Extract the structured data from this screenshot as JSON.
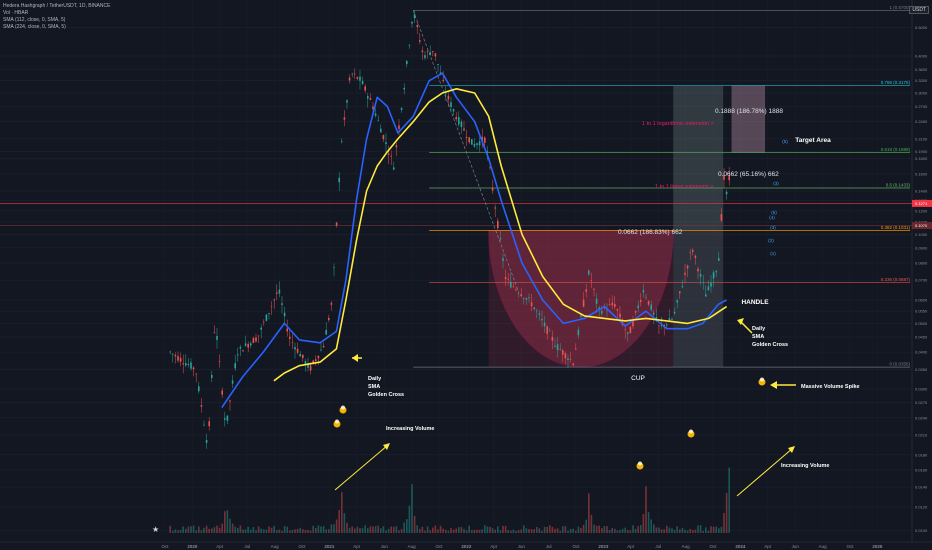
{
  "header": {
    "title": "Hedera Hashgraph / TetherUSDT, 1D, BINANCE",
    "line2": "Vol · HBAR",
    "line3": "SMA (112, close, 0, SMA, 5)",
    "line4": "SMA (224, close, 0, SMA, 5)"
  },
  "currency_badge": "USDT",
  "colors": {
    "background": "#131722",
    "sma_fast": "#2962ff",
    "sma_slow": "#ffeb3b",
    "cup_fill": "#9c2f4a",
    "bull": "#26a69a",
    "bear": "#ef5350",
    "fib_1": "#787b86",
    "fib_786": "#26c6da",
    "fib_618": "#4caf50",
    "fib_5": "#66bb6a",
    "fib_382": "#ff9800",
    "fib_236": "#ef5350",
    "fib_0": "#787b86",
    "target_fill": "#d4a0b8",
    "annotation_pink": "#e91e63",
    "arrow_yellow": "#ffeb3b",
    "hline_red": "#f23645"
  },
  "chart_data": {
    "type": "candlestick",
    "scale": "log",
    "ylim": [
      0.0098,
      0.59
    ],
    "x_tick_labels": [
      "Oct",
      "2020",
      "Apr",
      "Jul",
      "Aug",
      "Oct",
      "2021",
      "Apr",
      "Jun",
      "Aug",
      "Oct",
      "2022",
      "Apr",
      "Jun",
      "Jul",
      "Oct",
      "2023",
      "Apr",
      "Jul",
      "Aug",
      "Oct",
      "2024",
      "Apr",
      "Jun",
      "Aug",
      "Oct",
      "2025"
    ],
    "y_tick_labels": [
      "0.7000",
      "0.5000",
      "0.4000",
      "0.3600",
      "0.3300",
      "0.3000",
      "0.2700",
      "0.2400",
      "0.2100",
      "0.1900",
      "0.1800",
      "0.1600",
      "0.1400",
      "0.1300",
      "0.1200",
      "0.1100",
      "0.1000",
      "0.0900",
      "0.0800",
      "0.0700",
      "0.0600",
      "0.0550",
      "0.0500",
      "0.0450",
      "0.0400",
      "0.0350",
      "0.0300",
      "0.0270",
      "0.0240",
      "0.0210",
      "0.0180",
      "0.0160",
      "0.0140",
      "0.0120",
      "0.0100"
    ],
    "price_path": [
      [
        "2019-10-01",
        0.04
      ],
      [
        "2019-12-15",
        0.035
      ],
      [
        "2020-01-20",
        0.019
      ],
      [
        "2020-02-10",
        0.052
      ],
      [
        "2020-03-13",
        0.022
      ],
      [
        "2020-04-15",
        0.04
      ],
      [
        "2020-06-15",
        0.045
      ],
      [
        "2020-08-15",
        0.065
      ],
      [
        "2020-09-15",
        0.045
      ],
      [
        "2020-11-15",
        0.035
      ],
      [
        "2020-12-25",
        0.042
      ],
      [
        "2021-01-20",
        0.06
      ],
      [
        "2021-02-15",
        0.2
      ],
      [
        "2021-03-15",
        0.35
      ],
      [
        "2021-04-15",
        0.33
      ],
      [
        "2021-05-20",
        0.27
      ],
      [
        "2021-07-20",
        0.17
      ],
      [
        "2021-08-20",
        0.32
      ],
      [
        "2021-09-15",
        0.57
      ],
      [
        "2021-10-15",
        0.4
      ],
      [
        "2021-11-15",
        0.42
      ],
      [
        "2021-12-20",
        0.3
      ],
      [
        "2022-01-20",
        0.25
      ],
      [
        "2022-03-10",
        0.2
      ],
      [
        "2022-04-15",
        0.21
      ],
      [
        "2022-06-15",
        0.07
      ],
      [
        "2022-07-20",
        0.065
      ],
      [
        "2022-09-01",
        0.058
      ],
      [
        "2022-11-10",
        0.042
      ],
      [
        "2022-12-30",
        0.037
      ],
      [
        "2023-02-15",
        0.075
      ],
      [
        "2023-03-15",
        0.055
      ],
      [
        "2023-05-01",
        0.058
      ],
      [
        "2023-06-10",
        0.045
      ],
      [
        "2023-07-25",
        0.065
      ],
      [
        "2023-09-10",
        0.048
      ],
      [
        "2023-10-20",
        0.052
      ],
      [
        "2023-12-15",
        0.09
      ],
      [
        "2024-01-25",
        0.062
      ],
      [
        "2024-03-01",
        0.08
      ],
      [
        "2024-03-12",
        0.125
      ],
      [
        "2024-03-20",
        0.17
      ],
      [
        "2024-03-28",
        0.12
      ],
      [
        "2024-04-02",
        0.155
      ]
    ],
    "series": [
      {
        "name": "SMA 112",
        "points": [
          [
            "2020-03-01",
            0.026
          ],
          [
            "2020-05-01",
            0.033
          ],
          [
            "2020-07-01",
            0.04
          ],
          [
            "2020-09-01",
            0.05
          ],
          [
            "2020-10-15",
            0.044
          ],
          [
            "2020-12-15",
            0.043
          ],
          [
            "2021-02-01",
            0.047
          ],
          [
            "2021-03-01",
            0.07
          ],
          [
            "2021-04-01",
            0.13
          ],
          [
            "2021-05-01",
            0.21
          ],
          [
            "2021-06-01",
            0.29
          ],
          [
            "2021-07-01",
            0.27
          ],
          [
            "2021-08-01",
            0.22
          ],
          [
            "2021-09-15",
            0.25
          ],
          [
            "2021-11-01",
            0.33
          ],
          [
            "2021-12-10",
            0.35
          ],
          [
            "2022-01-20",
            0.29
          ],
          [
            "2022-03-15",
            0.24
          ],
          [
            "2022-04-25",
            0.18
          ],
          [
            "2022-06-01",
            0.13
          ],
          [
            "2022-08-01",
            0.08
          ],
          [
            "2022-10-01",
            0.06
          ],
          [
            "2022-12-01",
            0.05
          ],
          [
            "2023-02-01",
            0.052
          ],
          [
            "2023-04-01",
            0.057
          ],
          [
            "2023-06-01",
            0.049
          ],
          [
            "2023-08-01",
            0.055
          ],
          [
            "2023-10-01",
            0.048
          ],
          [
            "2023-12-01",
            0.048
          ],
          [
            "2024-01-15",
            0.05
          ],
          [
            "2024-03-01",
            0.058
          ],
          [
            "2024-03-25",
            0.06
          ]
        ]
      },
      {
        "name": "SMA 224",
        "points": [
          [
            "2020-08-01",
            0.032
          ],
          [
            "2020-09-01",
            0.034
          ],
          [
            "2020-10-15",
            0.036
          ],
          [
            "2020-12-15",
            0.037
          ],
          [
            "2021-02-01",
            0.041
          ],
          [
            "2021-03-01",
            0.06
          ],
          [
            "2021-04-01",
            0.095
          ],
          [
            "2021-05-01",
            0.14
          ],
          [
            "2021-06-01",
            0.17
          ],
          [
            "2021-07-01",
            0.19
          ],
          [
            "2021-08-01",
            0.21
          ],
          [
            "2021-09-15",
            0.24
          ],
          [
            "2021-11-01",
            0.28
          ],
          [
            "2021-12-10",
            0.3
          ],
          [
            "2022-01-20",
            0.31
          ],
          [
            "2022-03-15",
            0.3
          ],
          [
            "2022-04-25",
            0.25
          ],
          [
            "2022-06-01",
            0.17
          ],
          [
            "2022-08-01",
            0.1
          ],
          [
            "2022-10-01",
            0.072
          ],
          [
            "2022-12-01",
            0.058
          ],
          [
            "2023-02-01",
            0.053
          ],
          [
            "2023-04-01",
            0.052
          ],
          [
            "2023-06-01",
            0.051
          ],
          [
            "2023-08-01",
            0.052
          ],
          [
            "2023-10-01",
            0.051
          ],
          [
            "2023-12-01",
            0.05
          ],
          [
            "2024-02-01",
            0.052
          ],
          [
            "2024-03-25",
            0.057
          ]
        ]
      }
    ],
    "fib_levels": [
      {
        "ratio": "1",
        "price": 0.57,
        "label": "1 (0.5700)"
      },
      {
        "ratio": "0.786",
        "price": 0.3175,
        "label": "0.786 (0.3175)"
      },
      {
        "ratio": "0.618",
        "price": 0.1889,
        "label": "0.618 (0.1889)"
      },
      {
        "ratio": "0.5",
        "price": 0.1433,
        "label": "0.5 (0.1433)"
      },
      {
        "ratio": "0.382",
        "price": 0.1031,
        "label": "0.382 (0.1031)"
      },
      {
        "ratio": "0.236",
        "price": 0.0687,
        "label": "0.236 (0.0687)"
      },
      {
        "ratio": "0",
        "price": 0.0356,
        "label": "0 (0.0356)"
      }
    ],
    "current_price_labels": [
      "0.1271",
      "0.1070"
    ],
    "annotations": {
      "measure_top": "0.1888 (186.78%) 1888",
      "measure_mid": "0.0662 (65.16%) 662",
      "measure_cup": "0.0662 (186.83%) 662",
      "log_ext": "1 to 1 logarithmic extension >",
      "lin_ext": "1 to 1 linear extension >",
      "target": "Target Area",
      "cup": "CUP",
      "handle": "HANDLE",
      "golden_cross_1": [
        "Daily",
        "SMA",
        "Golden Cross"
      ],
      "golden_cross_2": [
        "Daily",
        "SMA",
        "Golden Cross"
      ],
      "increasing_vol_1": "Increasing Volume",
      "increasing_vol_2": "Increasing Volume",
      "massive_vol": "Massive Volume Spike",
      "wave_labels": [
        "(1)",
        "(2)",
        "(3)",
        "(4)",
        "(5)"
      ]
    },
    "volume_spikes": [
      [
        "2020-03-15",
        0.3
      ],
      [
        "2021-02-15",
        0.45
      ],
      [
        "2021-09-10",
        0.38
      ],
      [
        "2023-02-15",
        0.32
      ],
      [
        "2023-08-01",
        0.4
      ],
      [
        "2024-04-01",
        0.75
      ]
    ],
    "grid": true,
    "legend": "top-left"
  }
}
